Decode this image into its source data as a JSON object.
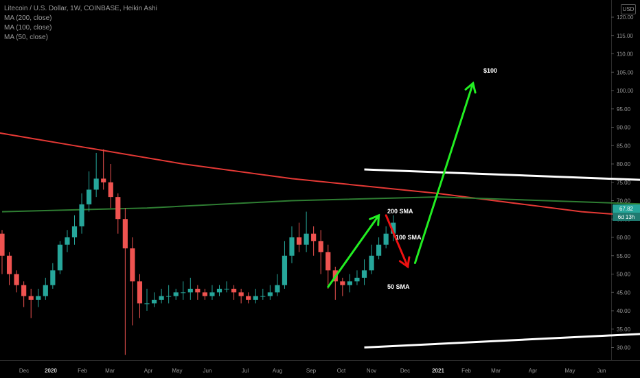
{
  "header": {
    "title": "Litecoin / U.S. Dollar, 1W, COINBASE, Heikin Ashi",
    "indicators": [
      "MA (200, close)",
      "MA (100, close)",
      "MA (50, close)"
    ]
  },
  "usd_label": "USD",
  "price_badge": {
    "price": "67.82",
    "countdown": "6d 13h",
    "color": "#26a69a"
  },
  "colors": {
    "up": "#26a69a",
    "down": "#ef5350",
    "ma200": "#e53935",
    "ma50": "#2e7d32",
    "annotation_green": "#22ee22",
    "annotation_red": "#ee1111",
    "trendline": "#ffffff",
    "yellow_line": "#e6e600"
  },
  "annotations": [
    "$100",
    "200 SMA",
    "100 SMA",
    "50 SMA"
  ],
  "chart_data": {
    "type": "candlestick",
    "title": "Litecoin / U.S. Dollar, 1W, COINBASE, Heikin Ashi",
    "y_unit": "USD",
    "ylim": [
      28,
      123
    ],
    "y_ticks": [
      "120.00",
      "115.00",
      "110.00",
      "105.00",
      "100.00",
      "95.00",
      "90.00",
      "85.00",
      "80.00",
      "75.00",
      "70.00",
      "65.00",
      "60.00",
      "55.00",
      "50.00",
      "45.00",
      "40.00",
      "35.00",
      "30.00"
    ],
    "x_ticks": [
      "Dec",
      "2020",
      "Feb",
      "Mar",
      "Apr",
      "May",
      "Jun",
      "Jul",
      "Aug",
      "Sep",
      "Oct",
      "Nov",
      "Dec",
      "2021",
      "Feb",
      "Mar",
      "Apr",
      "May",
      "Jun"
    ],
    "grid": false,
    "candles": [
      [
        61,
        55,
        62,
        50
      ],
      [
        55,
        50,
        56,
        47
      ],
      [
        50,
        47,
        51,
        45
      ],
      [
        47,
        44,
        48,
        41
      ],
      [
        44,
        43,
        46,
        38
      ],
      [
        43,
        44,
        46,
        41
      ],
      [
        44,
        47,
        49,
        43
      ],
      [
        47,
        51,
        53,
        46
      ],
      [
        51,
        58,
        59,
        50
      ],
      [
        58,
        60,
        62,
        56
      ],
      [
        60,
        63,
        66,
        58
      ],
      [
        63,
        69,
        72,
        61
      ],
      [
        69,
        73,
        78,
        67
      ],
      [
        73,
        76,
        83,
        71
      ],
      [
        76,
        75,
        84,
        73
      ],
      [
        75,
        71,
        80,
        68
      ],
      [
        71,
        65,
        72,
        61
      ],
      [
        65,
        57,
        68,
        28
      ],
      [
        57,
        48,
        60,
        36
      ],
      [
        48,
        42,
        50,
        38
      ],
      [
        42,
        42,
        46,
        40
      ],
      [
        42,
        43,
        45,
        41
      ],
      [
        43,
        44,
        46,
        42
      ],
      [
        44,
        44,
        47,
        42
      ],
      [
        44,
        45,
        46,
        43
      ],
      [
        45,
        45,
        48,
        43
      ],
      [
        45,
        46,
        49,
        43
      ],
      [
        46,
        45,
        47,
        43
      ],
      [
        45,
        44,
        46,
        43
      ],
      [
        44,
        45,
        47,
        43
      ],
      [
        45,
        46,
        47,
        44
      ],
      [
        46,
        46,
        48,
        45
      ],
      [
        46,
        45,
        47,
        43
      ],
      [
        45,
        44,
        46,
        42
      ],
      [
        44,
        43,
        45,
        42
      ],
      [
        43,
        44,
        46,
        42
      ],
      [
        44,
        44,
        46,
        43
      ],
      [
        44,
        45,
        47,
        43
      ],
      [
        45,
        47,
        50,
        44
      ],
      [
        47,
        55,
        59,
        46
      ],
      [
        55,
        60,
        63,
        53
      ],
      [
        60,
        58,
        64,
        56
      ],
      [
        58,
        61,
        67,
        56
      ],
      [
        61,
        59,
        63,
        55
      ],
      [
        59,
        56,
        62,
        50
      ],
      [
        56,
        51,
        58,
        46
      ],
      [
        51,
        48,
        52,
        43
      ],
      [
        48,
        47,
        49,
        44
      ],
      [
        47,
        48,
        50,
        45
      ],
      [
        48,
        49,
        51,
        47
      ],
      [
        49,
        51,
        54,
        47
      ],
      [
        51,
        55,
        58,
        50
      ],
      [
        55,
        58,
        60,
        54
      ],
      [
        58,
        61,
        63,
        57
      ],
      [
        61,
        64,
        66,
        59
      ]
    ],
    "series": [
      {
        "name": "MA (200, close)",
        "x": [
          -5,
          10,
          25,
          40,
          60,
          80,
          100,
          130,
          160,
          190,
          215,
          235,
          250
        ],
        "y": [
          90,
          85,
          80,
          76,
          72,
          67,
          64,
          62,
          61,
          61,
          60.5,
          60.8,
          62
        ]
      },
      {
        "name": "MA (50, close)",
        "x": [
          0,
          20,
          40,
          60,
          90,
          120,
          140,
          160,
          180,
          200,
          220,
          240,
          250
        ],
        "y": [
          67,
          68,
          70,
          71,
          69,
          63,
          57,
          53,
          52,
          50,
          49,
          49.5,
          50.8
        ]
      },
      {
        "name": "MA (100, close)",
        "x": [
          140,
          195,
          250
        ],
        "y": [
          65.5,
          66.5,
          70.5
        ]
      }
    ],
    "trendlines": [
      {
        "name": "upper",
        "x": [
          50,
          325
        ],
        "y": [
          78.5,
          58
        ]
      },
      {
        "name": "lower",
        "x": [
          50,
          325
        ],
        "y": [
          30,
          56.5
        ]
      },
      {
        "name": "target",
        "x": [
          320,
          320
        ],
        "y": [
          60,
          103
        ]
      }
    ]
  }
}
